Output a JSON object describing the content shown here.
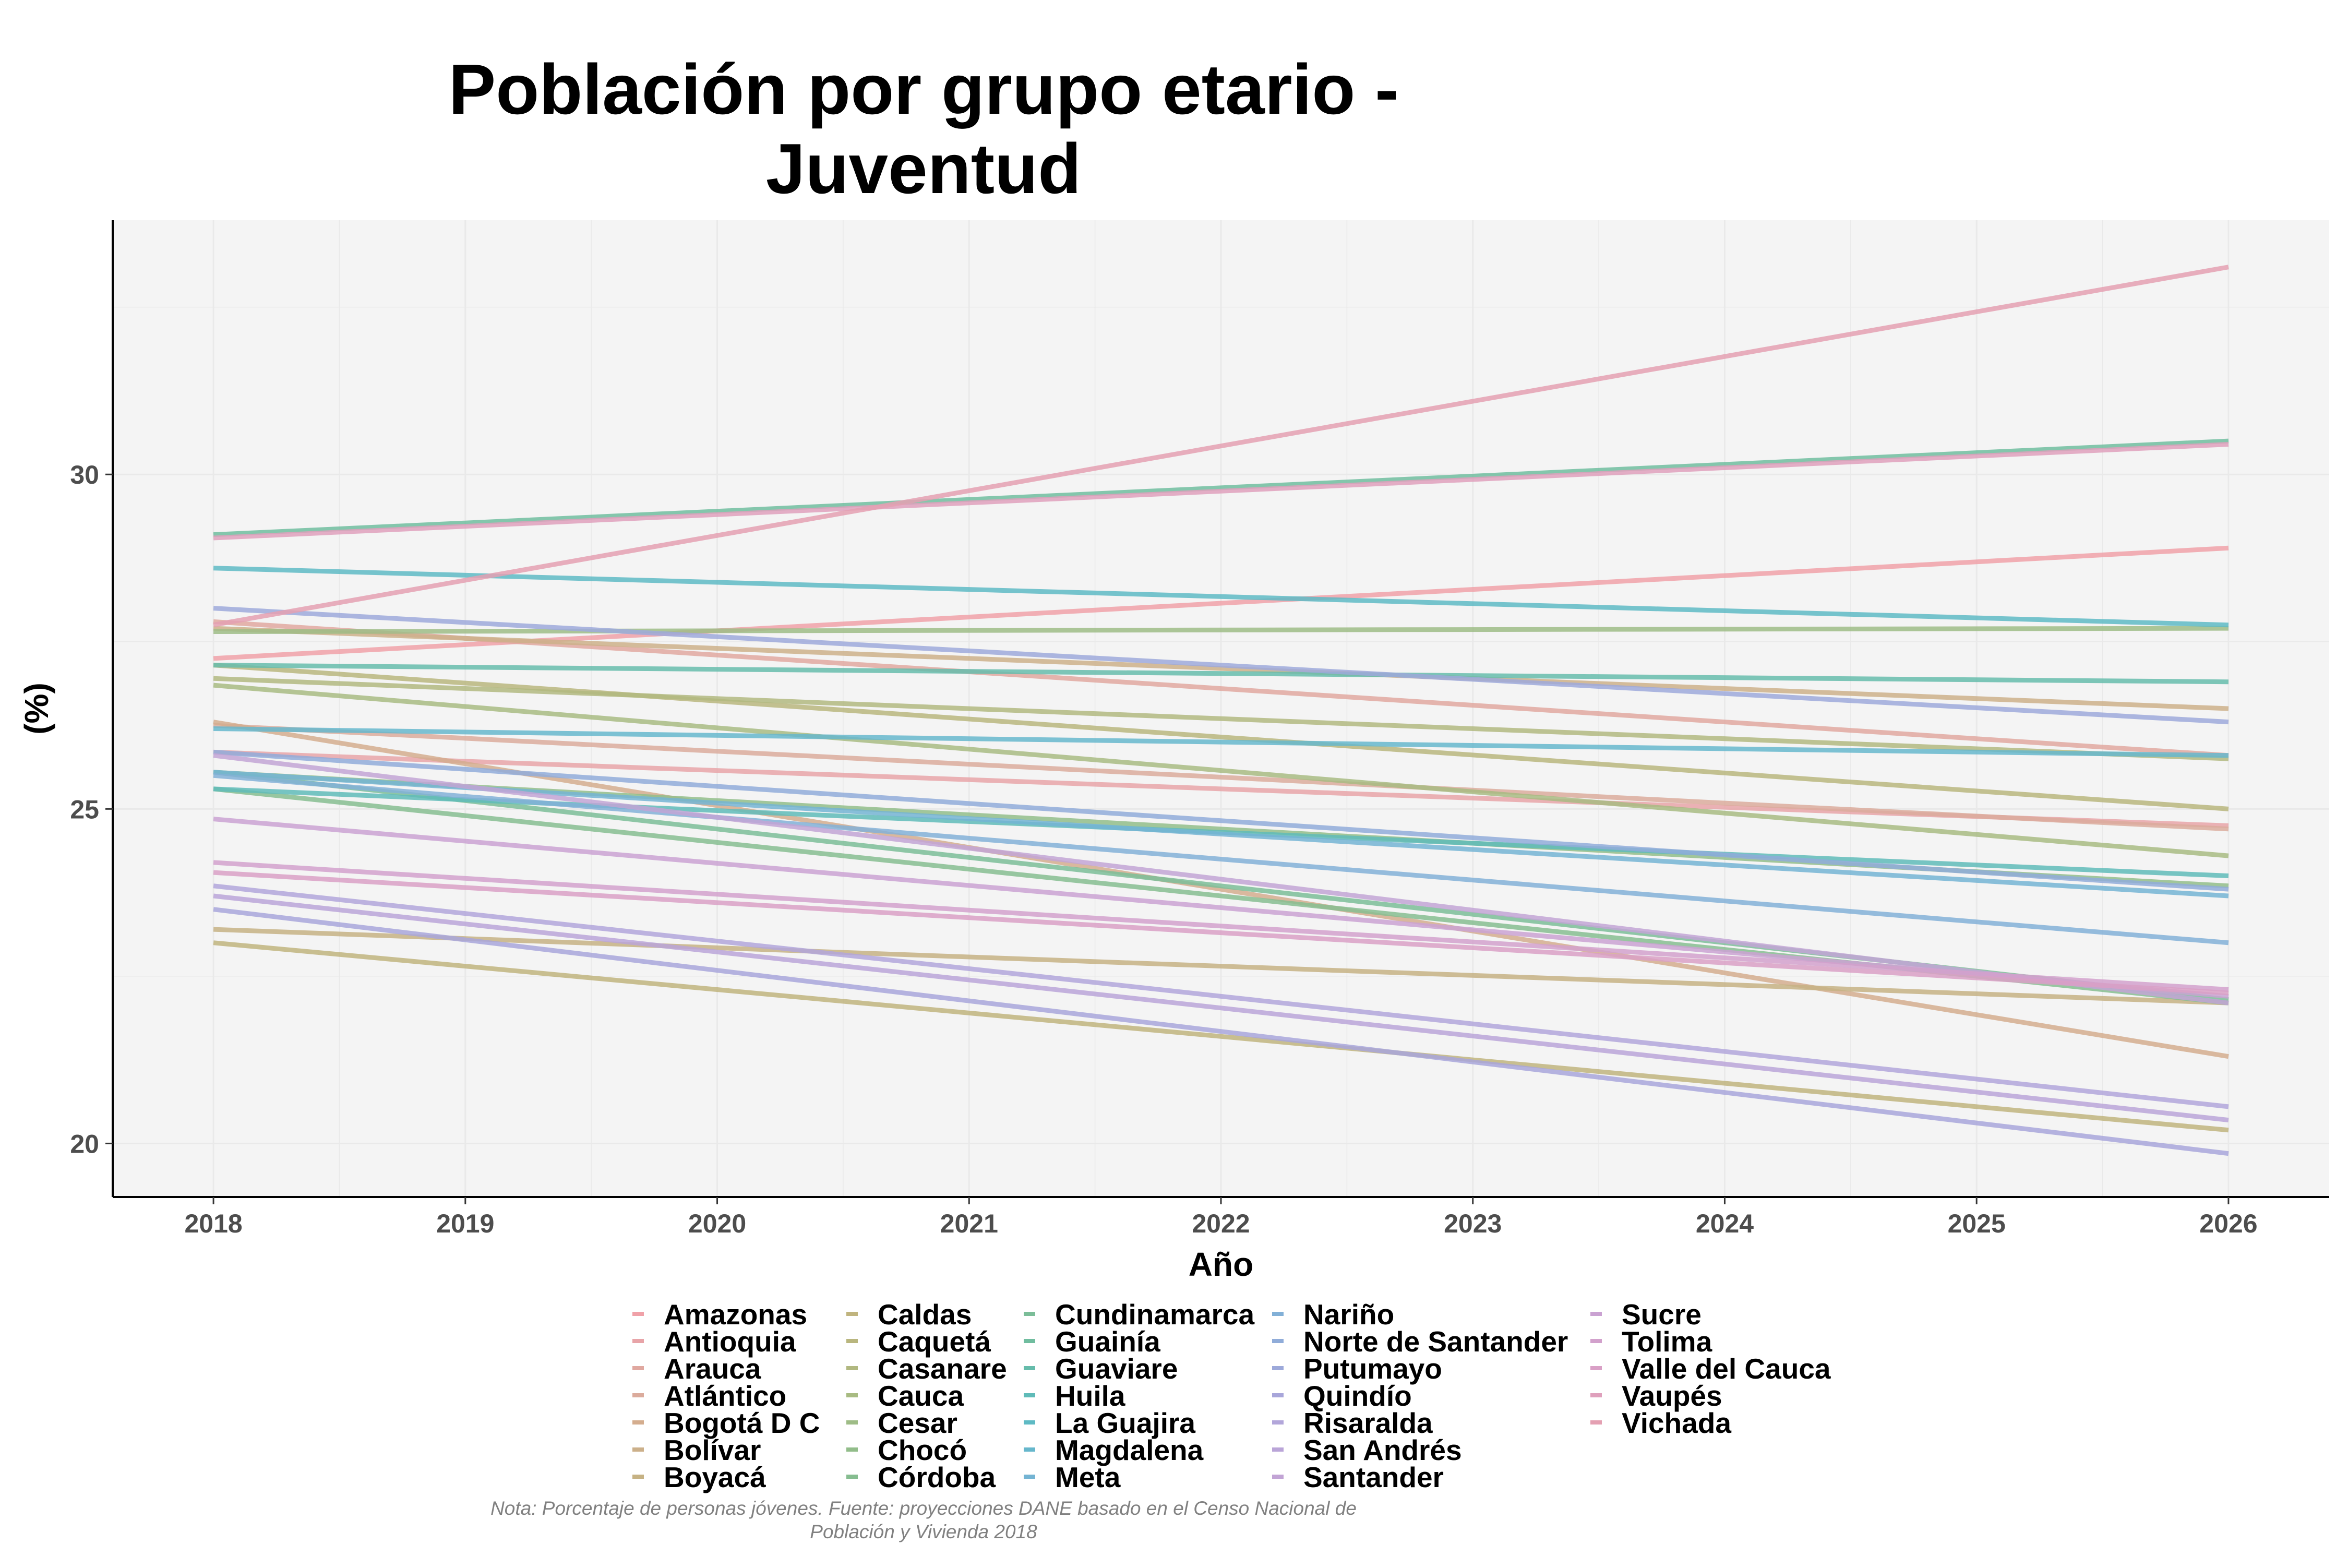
{
  "chart_data": {
    "type": "line",
    "title": [
      "Población por grupo etario -",
      "Juventud"
    ],
    "xlabel": "Año",
    "ylabel": "(%)",
    "x": [
      2018,
      2026
    ],
    "x_ticks": [
      "2018",
      "2019",
      "2020",
      "2021",
      "2022",
      "2023",
      "2024",
      "2025",
      "2026"
    ],
    "xlim": [
      2017.6,
      2026.4
    ],
    "ylim": [
      19.2,
      33.8
    ],
    "y_ticks": [
      20,
      25,
      30
    ],
    "y_tick_labels": [
      "20",
      "25",
      "30"
    ],
    "grid": true,
    "legend_position": "bottom",
    "caption": [
      "Nota: Porcentaje de personas jóvenes. Fuente: proyecciones DANE basado en el Censo Nacional de",
      "Población y Vivienda 2018"
    ],
    "series": [
      {
        "name": "Amazonas",
        "color": "#f0a1a8",
        "values": [
          27.25,
          28.9
        ]
      },
      {
        "name": "Antioquia",
        "color": "#e8a4a8",
        "values": [
          25.85,
          24.75
        ]
      },
      {
        "name": "Arauca",
        "color": "#e0a8a0",
        "values": [
          27.8,
          25.8
        ]
      },
      {
        "name": "Atlántico",
        "color": "#dbab9c",
        "values": [
          26.25,
          24.7
        ]
      },
      {
        "name": "Bogotá D C",
        "color": "#d4ad8e",
        "values": [
          26.3,
          21.3
        ]
      },
      {
        "name": "Bolívar",
        "color": "#ccb08a",
        "values": [
          27.7,
          26.5
        ]
      },
      {
        "name": "Boyacá",
        "color": "#c6b284",
        "values": [
          23.2,
          22.1
        ]
      },
      {
        "name": "Caldas",
        "color": "#c0b47e",
        "values": [
          23.0,
          20.2
        ]
      },
      {
        "name": "Caquetá",
        "color": "#b9b67e",
        "values": [
          27.15,
          25.0
        ]
      },
      {
        "name": "Casanare",
        "color": "#b1b880",
        "values": [
          26.95,
          25.75
        ]
      },
      {
        "name": "Cauca",
        "color": "#a8bb82",
        "values": [
          26.85,
          24.3
        ]
      },
      {
        "name": "Cesar",
        "color": "#9ebc86",
        "values": [
          27.65,
          27.7
        ]
      },
      {
        "name": "Chocó",
        "color": "#92bd8a",
        "values": [
          25.55,
          23.85
        ]
      },
      {
        "name": "Córdoba",
        "color": "#86bd90",
        "values": [
          25.3,
          22.1
        ]
      },
      {
        "name": "Cundinamarca",
        "color": "#7bbd98",
        "values": [
          25.55,
          22.15
        ]
      },
      {
        "name": "Guainía",
        "color": "#70bd9f",
        "values": [
          29.1,
          30.5
        ]
      },
      {
        "name": "Guaviare",
        "color": "#66bcab",
        "values": [
          27.15,
          26.9
        ]
      },
      {
        "name": "Huila",
        "color": "#5fbbb8",
        "values": [
          25.3,
          24.0
        ]
      },
      {
        "name": "La Guajira",
        "color": "#5ebac4",
        "values": [
          28.6,
          27.75
        ]
      },
      {
        "name": "Magdalena",
        "color": "#66b7cc",
        "values": [
          26.2,
          25.8
        ]
      },
      {
        "name": "Meta",
        "color": "#74b4d3",
        "values": [
          25.55,
          23.7
        ]
      },
      {
        "name": "Nariño",
        "color": "#82b0d7",
        "values": [
          25.5,
          23.0
        ]
      },
      {
        "name": "Norte de Santander",
        "color": "#90acd9",
        "values": [
          25.85,
          23.8
        ]
      },
      {
        "name": "Putumayo",
        "color": "#9da9da",
        "values": [
          28.0,
          26.3
        ]
      },
      {
        "name": "Quindío",
        "color": "#a8a6da",
        "values": [
          23.5,
          19.85
        ]
      },
      {
        "name": "Risaralda",
        "color": "#b2a6da",
        "values": [
          23.85,
          20.55
        ]
      },
      {
        "name": "San Andrés",
        "color": "#baa5d8",
        "values": [
          23.7,
          20.35
        ]
      },
      {
        "name": "Santander",
        "color": "#c2a4d5",
        "values": [
          25.8,
          22.1
        ]
      },
      {
        "name": "Sucre",
        "color": "#caa2d2",
        "values": [
          24.85,
          22.2
        ]
      },
      {
        "name": "Tolima",
        "color": "#d2a1cc",
        "values": [
          24.2,
          22.3
        ]
      },
      {
        "name": "Valle del Cauca",
        "color": "#d9a0c6",
        "values": [
          24.05,
          22.25
        ]
      },
      {
        "name": "Vaupés",
        "color": "#dfa0bc",
        "values": [
          29.05,
          30.45
        ]
      },
      {
        "name": "Vichada",
        "color": "#e4a0b2",
        "values": [
          27.75,
          33.1
        ]
      }
    ]
  }
}
